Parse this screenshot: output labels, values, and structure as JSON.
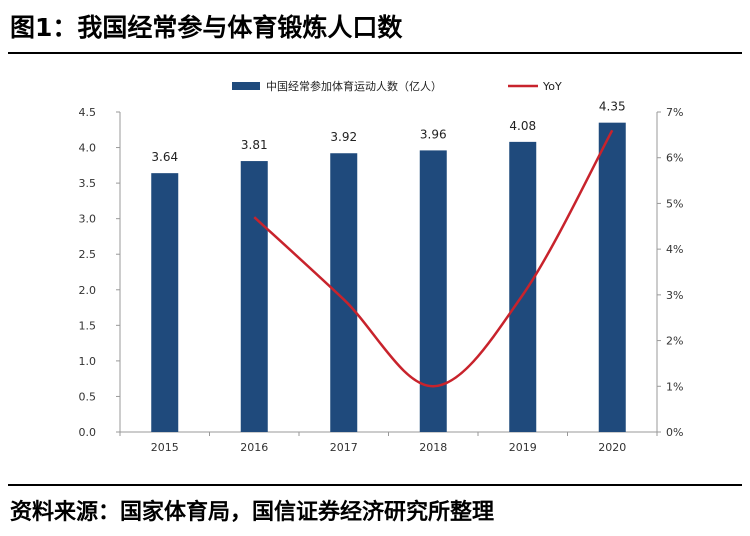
{
  "figure": {
    "title": "图1：我国经常参与体育锻炼人口数",
    "source": "资料来源：国家体育局，国信证券经济研究所整理"
  },
  "chart_data": {
    "type": "bar",
    "categories": [
      "2015",
      "2016",
      "2017",
      "2018",
      "2019",
      "2020"
    ],
    "series": [
      {
        "name": "中国经常参加体育运动人数（亿人）",
        "chart": "bar",
        "axis": "left",
        "color": "#1f4a7c",
        "values": [
          3.64,
          3.81,
          3.92,
          3.96,
          4.08,
          4.35
        ],
        "data_labels": [
          "3.64",
          "3.81",
          "3.92",
          "3.96",
          "4.08",
          "4.35"
        ]
      },
      {
        "name": "YoY",
        "chart": "line",
        "axis": "right",
        "color": "#c8232c",
        "values": [
          null,
          4.7,
          2.9,
          1.0,
          3.0,
          6.6
        ]
      }
    ],
    "y_left": {
      "ylim": [
        0,
        4.5
      ],
      "ticks": [
        "0.0",
        "0.5",
        "1.0",
        "1.5",
        "2.0",
        "2.5",
        "3.0",
        "3.5",
        "4.0",
        "4.5"
      ]
    },
    "y_right": {
      "ylim": [
        0,
        7
      ],
      "unit": "%",
      "ticks": [
        "0%",
        "1%",
        "2%",
        "3%",
        "4%",
        "5%",
        "6%",
        "7%"
      ]
    },
    "legend_position": "top-center",
    "grid": false
  }
}
